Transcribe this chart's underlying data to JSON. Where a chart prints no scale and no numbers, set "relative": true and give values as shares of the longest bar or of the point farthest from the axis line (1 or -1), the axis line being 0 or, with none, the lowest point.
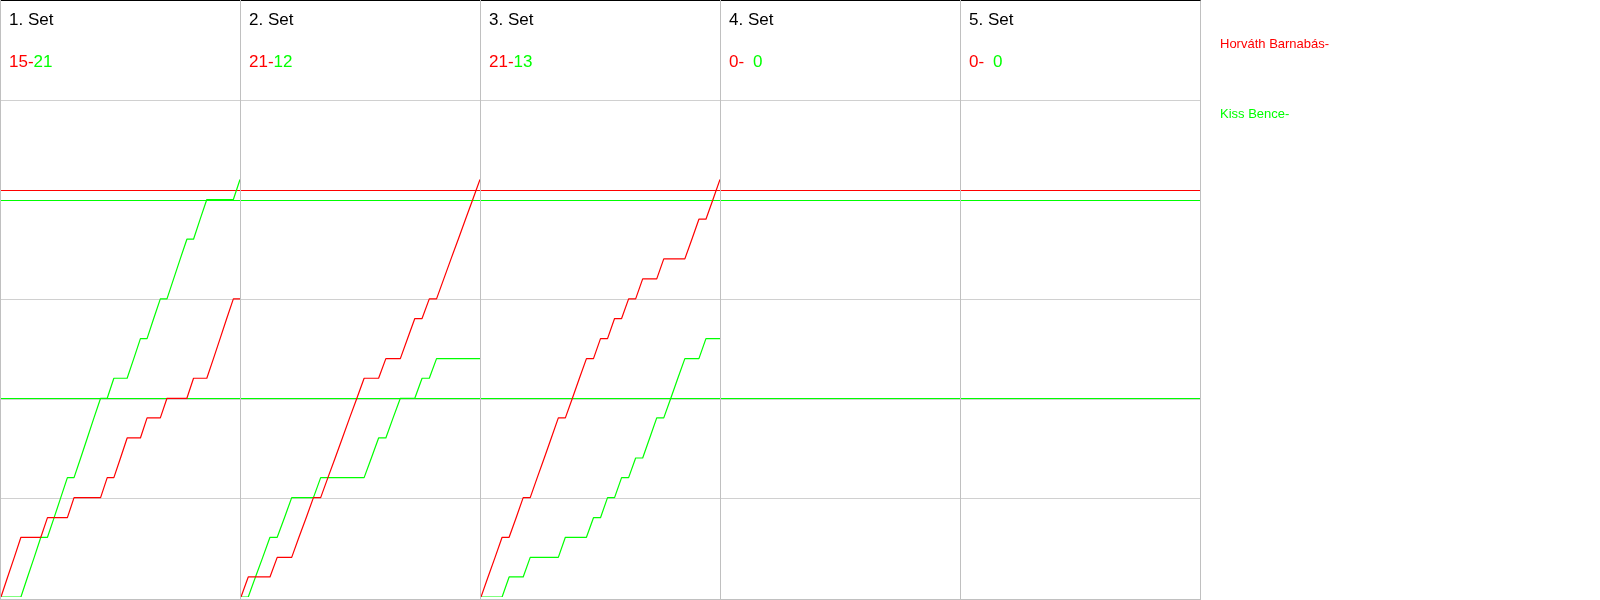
{
  "chart_data": [
    {
      "type": "line",
      "title": "1. Set",
      "annotations": [
        "15-",
        "21"
      ],
      "relative": true,
      "legend": "right",
      "categories": [
        null,
        null,
        null,
        null,
        null,
        null,
        null,
        null,
        null,
        null,
        null,
        null,
        null,
        null,
        null,
        null,
        null,
        null,
        null,
        null,
        null,
        null,
        null,
        null,
        null,
        null,
        null,
        null,
        null,
        null,
        null,
        null,
        null,
        null,
        null,
        null,
        null
      ],
      "series": [
        {
          "name": "Horváth Barnabás-",
          "color": "#ff0000",
          "values": [
            0,
            0.048,
            0.095,
            0.143,
            0.143,
            0.143,
            0.143,
            0.19,
            0.19,
            0.19,
            0.19,
            0.238,
            0.238,
            0.238,
            0.238,
            0.238,
            0.286,
            0.286,
            0.333,
            0.381,
            0.381,
            0.381,
            0.429,
            0.429,
            0.429,
            0.476,
            0.476,
            0.476,
            0.476,
            0.524,
            0.524,
            0.524,
            0.571,
            0.619,
            0.667,
            0.714,
            0.714
          ]
        },
        {
          "name": "Kiss Bence-",
          "color": "#00ff00",
          "values": [
            0,
            0,
            0,
            0,
            0.048,
            0.095,
            0.143,
            0.143,
            0.19,
            0.238,
            0.286,
            0.286,
            0.333,
            0.381,
            0.429,
            0.476,
            0.476,
            0.524,
            0.524,
            0.524,
            0.571,
            0.619,
            0.619,
            0.667,
            0.714,
            0.714,
            0.762,
            0.81,
            0.857,
            0.857,
            0.905,
            0.952,
            0.952,
            0.952,
            0.952,
            0.952,
            1
          ]
        }
      ],
      "ref_lines": [
        {
          "axis": "y",
          "value": 0.976,
          "color": "#ff0000"
        },
        {
          "axis": "y",
          "value": 0.952,
          "color": "#00ff00"
        },
        {
          "axis": "y",
          "value": 0.476,
          "color": "#00ff00"
        }
      ]
    },
    {
      "type": "line",
      "title": "2. Set",
      "annotations": [
        "21-",
        "12"
      ],
      "relative": true,
      "categories": [
        null,
        null,
        null,
        null,
        null,
        null,
        null,
        null,
        null,
        null,
        null,
        null,
        null,
        null,
        null,
        null,
        null,
        null,
        null,
        null,
        null,
        null,
        null,
        null,
        null,
        null,
        null,
        null,
        null,
        null,
        null,
        null,
        null,
        null
      ],
      "series": [
        {
          "color": "#ff0000",
          "values": [
            0,
            0.048,
            0.048,
            0.048,
            0.048,
            0.095,
            0.095,
            0.095,
            0.143,
            0.19,
            0.238,
            0.238,
            0.286,
            0.333,
            0.381,
            0.429,
            0.476,
            0.524,
            0.524,
            0.524,
            0.571,
            0.571,
            0.571,
            0.619,
            0.667,
            0.667,
            0.714,
            0.714,
            0.762,
            0.81,
            0.857,
            0.905,
            0.952,
            1
          ]
        },
        {
          "color": "#00ff00",
          "values": [
            0,
            0,
            0.048,
            0.095,
            0.143,
            0.143,
            0.19,
            0.238,
            0.238,
            0.238,
            0.238,
            0.286,
            0.286,
            0.286,
            0.286,
            0.286,
            0.286,
            0.286,
            0.333,
            0.381,
            0.381,
            0.429,
            0.476,
            0.476,
            0.476,
            0.524,
            0.524,
            0.571,
            0.571,
            0.571,
            0.571,
            0.571,
            0.571,
            0.571
          ]
        }
      ],
      "ref_lines": [
        {
          "axis": "y",
          "value": 0.976,
          "color": "#ff0000"
        },
        {
          "axis": "y",
          "value": 0.952,
          "color": "#00ff00"
        },
        {
          "axis": "y",
          "value": 0.476,
          "color": "#00ff00"
        }
      ]
    },
    {
      "type": "line",
      "title": "3. Set",
      "annotations": [
        "21-",
        "13"
      ],
      "relative": true,
      "categories": [
        null,
        null,
        null,
        null,
        null,
        null,
        null,
        null,
        null,
        null,
        null,
        null,
        null,
        null,
        null,
        null,
        null,
        null,
        null,
        null,
        null,
        null,
        null,
        null,
        null,
        null,
        null,
        null,
        null,
        null,
        null,
        null,
        null,
        null,
        null
      ],
      "series": [
        {
          "color": "#ff0000",
          "values": [
            0,
            0.048,
            0.095,
            0.143,
            0.143,
            0.19,
            0.238,
            0.238,
            0.286,
            0.333,
            0.381,
            0.429,
            0.429,
            0.476,
            0.524,
            0.571,
            0.571,
            0.619,
            0.619,
            0.667,
            0.667,
            0.714,
            0.714,
            0.762,
            0.762,
            0.762,
            0.81,
            0.81,
            0.81,
            0.81,
            0.857,
            0.905,
            0.905,
            0.952,
            1
          ]
        },
        {
          "color": "#00ff00",
          "values": [
            0,
            0,
            0,
            0,
            0.048,
            0.048,
            0.048,
            0.095,
            0.095,
            0.095,
            0.095,
            0.095,
            0.143,
            0.143,
            0.143,
            0.143,
            0.19,
            0.19,
            0.238,
            0.238,
            0.286,
            0.286,
            0.333,
            0.333,
            0.381,
            0.429,
            0.429,
            0.476,
            0.524,
            0.571,
            0.571,
            0.571,
            0.619,
            0.619,
            0.619
          ]
        }
      ],
      "ref_lines": [
        {
          "axis": "y",
          "value": 0.976,
          "color": "#ff0000"
        },
        {
          "axis": "y",
          "value": 0.952,
          "color": "#00ff00"
        },
        {
          "axis": "y",
          "value": 0.476,
          "color": "#00ff00"
        }
      ]
    },
    {
      "type": "other",
      "title": "4. Set",
      "annotations": [
        "0-",
        "0"
      ]
    },
    {
      "type": "other",
      "title": "5. Set",
      "annotations": [
        "0-",
        "0"
      ]
    }
  ]
}
